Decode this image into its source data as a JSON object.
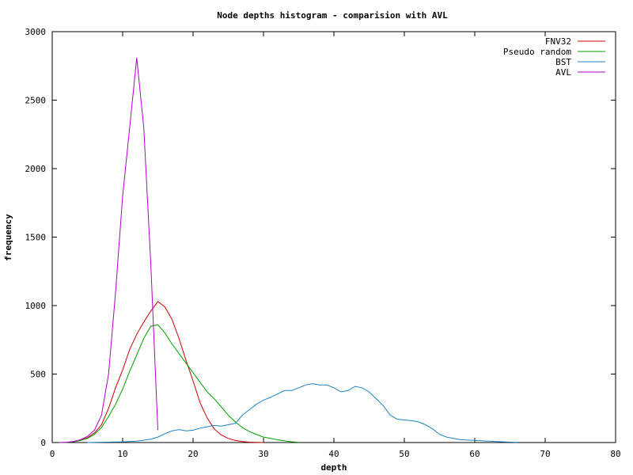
{
  "chart_data": {
    "type": "line",
    "title": "Node depths histogram - comparision with AVL",
    "xlabel": "depth",
    "ylabel": "frequency",
    "xlim": [
      0,
      80
    ],
    "ylim": [
      0,
      3000
    ],
    "x_ticks": [
      0,
      10,
      20,
      30,
      40,
      50,
      60,
      70,
      80
    ],
    "y_ticks": [
      0,
      500,
      1000,
      1500,
      2000,
      2500,
      3000
    ],
    "grid": false,
    "legend_position": "top-right",
    "series": [
      {
        "name": "FNV32",
        "color": "#cc0000",
        "x": [
          1,
          2,
          3,
          4,
          5,
          6,
          7,
          8,
          9,
          10,
          11,
          12,
          13,
          14,
          15,
          16,
          17,
          18,
          19,
          20,
          21,
          22,
          23,
          24,
          25,
          26,
          27,
          28,
          29,
          30
        ],
        "values": [
          0,
          2,
          6,
          15,
          35,
          70,
          130,
          250,
          400,
          530,
          680,
          790,
          880,
          960,
          1030,
          990,
          900,
          760,
          600,
          450,
          290,
          180,
          100,
          55,
          30,
          15,
          7,
          3,
          1,
          0
        ]
      },
      {
        "name": "Pseudo random",
        "color": "#00a000",
        "x": [
          1,
          2,
          3,
          4,
          5,
          6,
          7,
          8,
          9,
          10,
          11,
          12,
          13,
          14,
          15,
          16,
          17,
          18,
          19,
          20,
          21,
          22,
          23,
          24,
          25,
          26,
          27,
          28,
          29,
          30,
          31,
          32,
          33,
          34,
          35
        ],
        "values": [
          0,
          2,
          6,
          15,
          30,
          60,
          110,
          190,
          280,
          390,
          520,
          640,
          760,
          850,
          860,
          800,
          720,
          650,
          580,
          510,
          440,
          370,
          320,
          260,
          200,
          150,
          110,
          80,
          60,
          40,
          30,
          20,
          12,
          6,
          2
        ]
      },
      {
        "name": "BST",
        "color": "#1c82c0",
        "x": [
          5,
          10,
          12,
          14,
          15,
          16,
          17,
          18,
          19,
          20,
          21,
          22,
          23,
          24,
          25,
          26,
          27,
          28,
          29,
          30,
          31,
          32,
          33,
          34,
          35,
          36,
          37,
          38,
          39,
          40,
          41,
          42,
          43,
          44,
          45,
          46,
          47,
          48,
          49,
          50,
          51,
          52,
          53,
          54,
          55,
          56,
          57,
          58,
          59,
          60,
          62,
          64,
          66
        ],
        "values": [
          0,
          5,
          10,
          25,
          40,
          65,
          85,
          95,
          85,
          90,
          105,
          115,
          125,
          120,
          130,
          140,
          200,
          240,
          280,
          310,
          330,
          355,
          380,
          380,
          400,
          420,
          430,
          420,
          420,
          400,
          370,
          380,
          410,
          400,
          370,
          320,
          270,
          200,
          170,
          165,
          160,
          150,
          130,
          100,
          60,
          40,
          30,
          20,
          18,
          15,
          10,
          5,
          2
        ]
      },
      {
        "name": "AVL",
        "color": "#b000c8",
        "x": [
          1,
          2,
          3,
          4,
          5,
          6,
          7,
          8,
          9,
          10,
          11,
          12,
          13,
          14,
          15
        ],
        "values": [
          0,
          2,
          8,
          20,
          45,
          90,
          200,
          500,
          1100,
          1800,
          2300,
          2810,
          2300,
          1300,
          90
        ]
      }
    ]
  }
}
